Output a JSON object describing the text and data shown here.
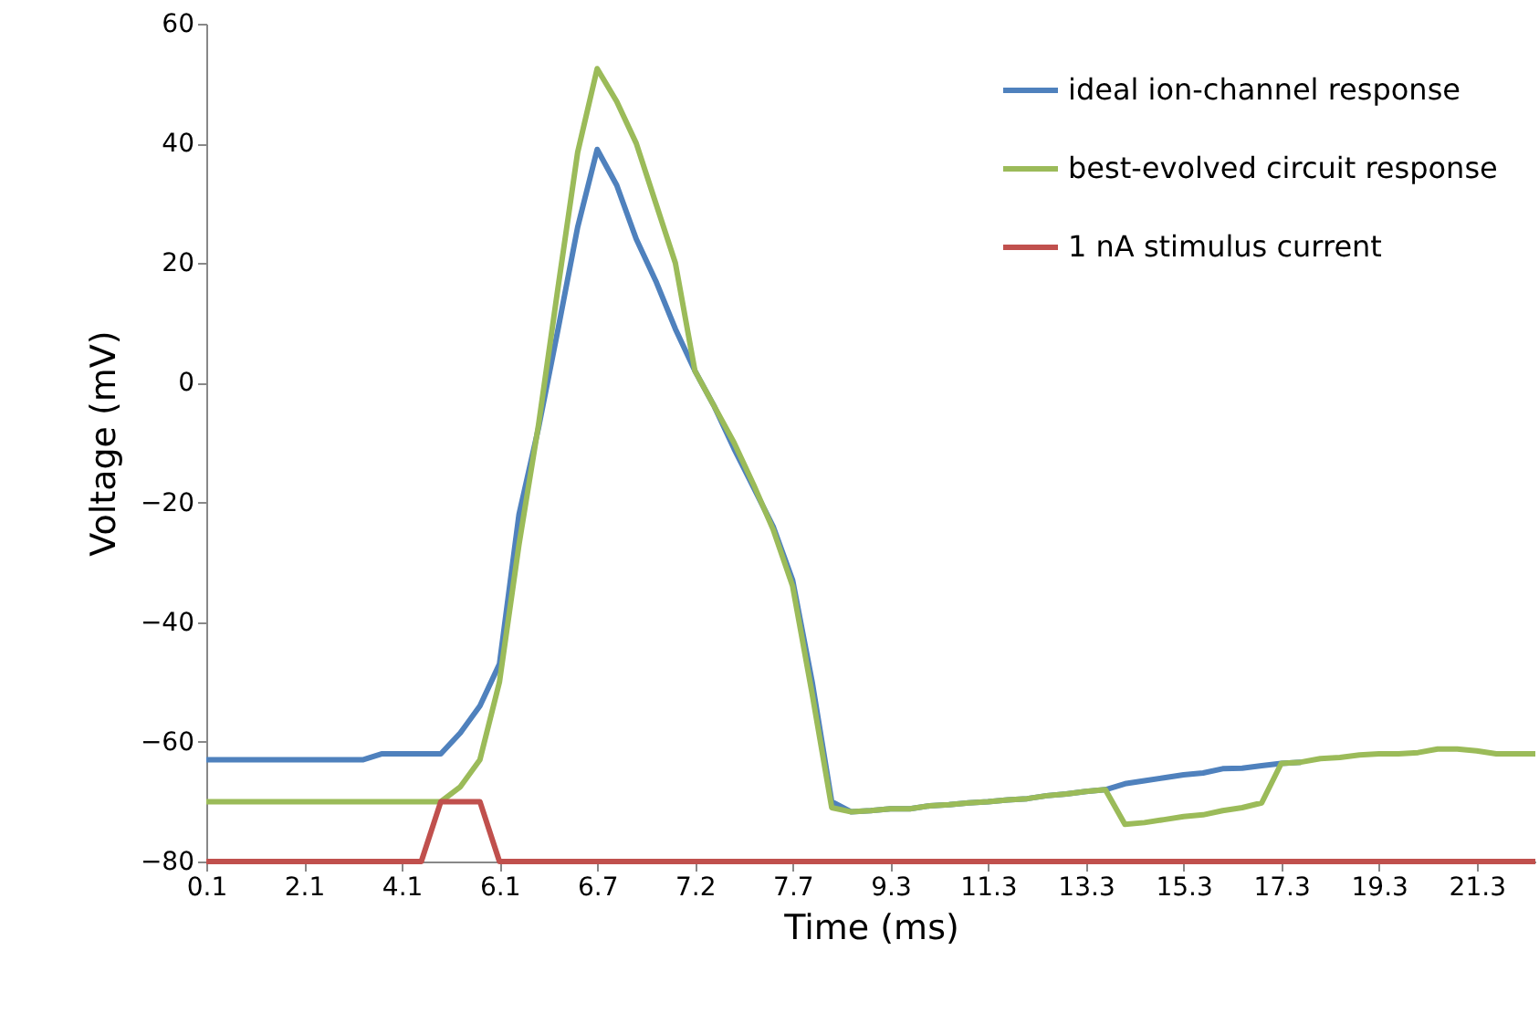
{
  "chart_data": {
    "type": "line",
    "xlabel": "Time (ms)",
    "ylabel": "Voltage (mV)",
    "ylim": [
      -80,
      60
    ],
    "yticks": [
      -80,
      -60,
      -40,
      -20,
      0,
      20,
      40,
      60
    ],
    "grid": false,
    "legend": "top right",
    "categories": [
      "0.1",
      null,
      null,
      null,
      null,
      "2.1",
      null,
      null,
      null,
      null,
      "4.1",
      null,
      null,
      null,
      null,
      "6.1",
      null,
      null,
      null,
      null,
      "6.7",
      null,
      null,
      null,
      null,
      "7.2",
      null,
      null,
      null,
      null,
      "7.7",
      null,
      null,
      null,
      null,
      "9.3",
      null,
      null,
      null,
      null,
      "11.3",
      null,
      null,
      null,
      null,
      "13.3",
      null,
      null,
      null,
      null,
      "15.3",
      null,
      null,
      null,
      null,
      "17.3",
      null,
      null,
      null,
      null,
      "19.3",
      null,
      null,
      null,
      null,
      "21.3",
      null,
      null,
      null
    ],
    "series": [
      {
        "name": "ideal ion-channel response",
        "color": "#4f81bd",
        "values": [
          -63,
          -63,
          -63,
          -63,
          -63,
          -63,
          -63,
          -63,
          -63,
          -62,
          -62,
          -62,
          -62,
          -58.5,
          -54,
          -47,
          -22,
          -7.5,
          9,
          26,
          39,
          33,
          24,
          17,
          9,
          2,
          -4,
          -11,
          -17.5,
          -24,
          -33,
          -50,
          -70,
          -71.7,
          -71.5,
          -71.2,
          -71.2,
          -70.7,
          -70.5,
          -70.2,
          -70,
          -69.7,
          -69.5,
          -69,
          -68.7,
          -68.3,
          -68,
          -67,
          -66.5,
          -66,
          -65.5,
          -65.2,
          -64.5,
          -64.4,
          -64,
          -63.6,
          -63.4,
          null,
          null,
          null,
          null,
          null,
          null,
          null,
          null,
          null,
          null,
          null,
          null
        ]
      },
      {
        "name": "best-evolved circuit response",
        "color": "#9bbb59",
        "values": [
          -70,
          -70,
          -70,
          -70,
          -70,
          -70,
          -70,
          -70,
          -70,
          -70,
          -70,
          -70,
          -70,
          -67.5,
          -63,
          -50,
          -27,
          -7,
          16,
          38.5,
          52.5,
          47,
          40,
          30,
          20,
          2,
          -4,
          -10,
          -17,
          -24.5,
          -34,
          -52,
          -71,
          -71.7,
          -71.5,
          -71.2,
          -71.2,
          -70.7,
          -70.5,
          -70.2,
          -70,
          -69.7,
          -69.5,
          -69,
          -68.7,
          -68.3,
          -68,
          -73.8,
          -73.5,
          -73,
          -72.5,
          -72.2,
          -71.5,
          -71,
          -70.2,
          -63.6,
          -63.4,
          -62.8,
          -62.6,
          -62.2,
          -62,
          -62,
          -61.8,
          -61.2,
          -61.2,
          -61.5,
          -62,
          -62,
          -62
        ]
      },
      {
        "name": "1 nA stimulus current",
        "color": "#c0504d",
        "values": [
          -80,
          -80,
          -80,
          -80,
          -80,
          -80,
          -80,
          -80,
          -80,
          -80,
          -80,
          -80,
          -70,
          -70,
          -70,
          -80,
          -80,
          -80,
          -80,
          -80,
          -80,
          -80,
          -80,
          -80,
          -80,
          -80,
          -80,
          -80,
          -80,
          -80,
          -80,
          -80,
          -80,
          -80,
          -80,
          -80,
          -80,
          -80,
          -80,
          -80,
          -80,
          -80,
          -80,
          -80,
          -80,
          -80,
          -80,
          -80,
          -80,
          -80,
          -80,
          -80,
          -80,
          -80,
          -80,
          -80,
          -80,
          -80,
          -80,
          -80,
          -80,
          -80,
          -80,
          -80,
          -80,
          -80,
          -80,
          -80,
          -80
        ]
      }
    ]
  }
}
